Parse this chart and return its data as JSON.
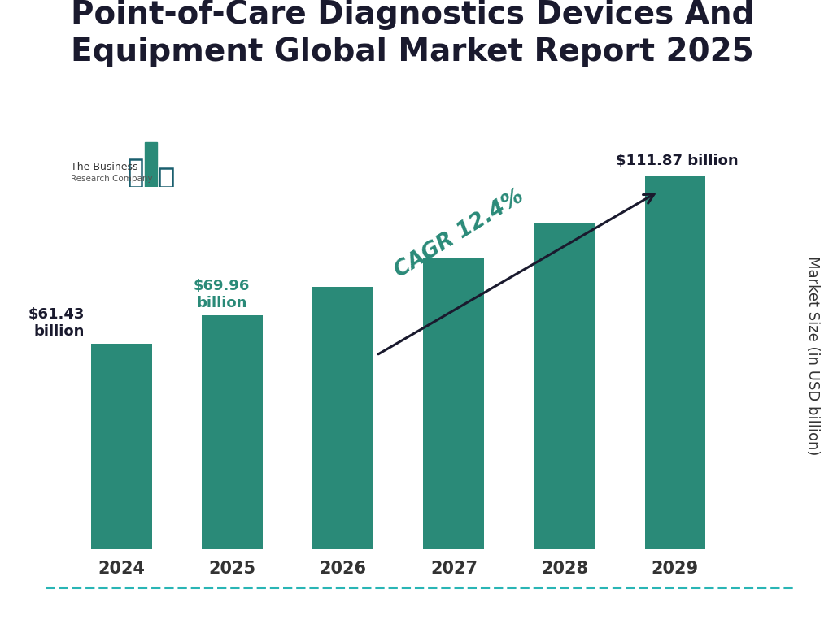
{
  "title": "Point-of-Care Diagnostics Devices And\nEquipment Global Market Report 2025",
  "years": [
    "2024",
    "2025",
    "2026",
    "2027",
    "2028",
    "2029"
  ],
  "values": [
    61.43,
    69.96,
    78.5,
    87.2,
    97.5,
    111.87
  ],
  "bar_color": "#2a8a78",
  "background_color": "#ffffff",
  "ylabel": "Market Size (in USD billion)",
  "cagr_text": "CAGR 12.4%",
  "cagr_color": "#2a8a78",
  "label_2024": "$61.43\nbillion",
  "label_2025": "$69.96\nbillion",
  "label_2029": "$111.87 billion",
  "label_color_2024": "#1a1a2e",
  "label_color_2025": "#2a8a78",
  "label_color_2029": "#1a1a2e",
  "arrow_color": "#1a1a2e",
  "border_color": "#29b5b5",
  "title_fontsize": 28,
  "tick_fontsize": 15,
  "ylabel_fontsize": 13,
  "ylim_max": 140
}
